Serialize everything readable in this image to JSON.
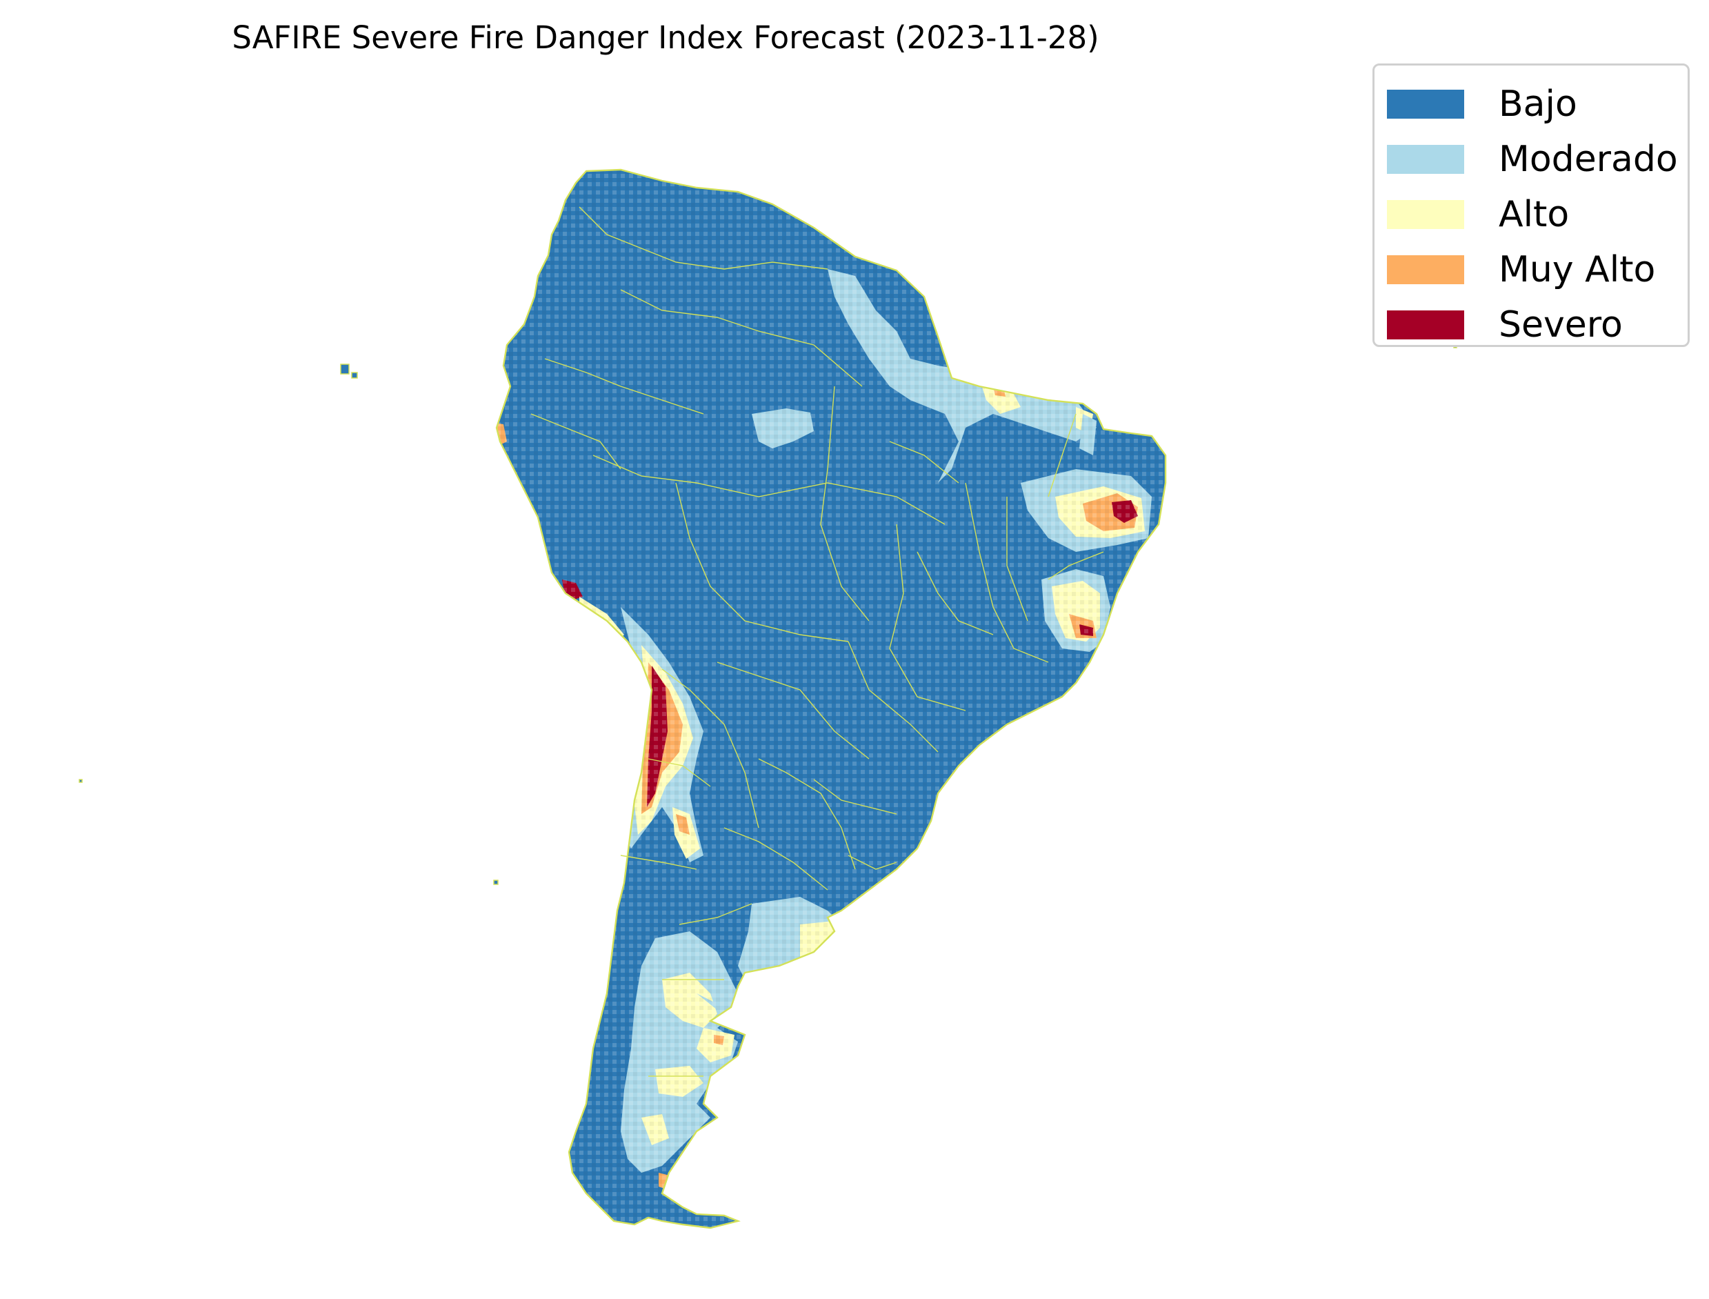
{
  "title": "SAFIRE Severe Fire Danger Index Forecast (2023-11-28)",
  "legend": [
    {
      "label": "Bajo",
      "color": "#2c79b5"
    },
    {
      "label": "Moderado",
      "color": "#abd9e9"
    },
    {
      "label": "Alto",
      "color": "#fefebd"
    },
    {
      "label": "Muy Alto",
      "color": "#fdae61"
    },
    {
      "label": "Severo",
      "color": "#a50026"
    }
  ],
  "map": {
    "region": "South America",
    "background_class": "Bajo",
    "border_color": "#d4e157",
    "hotspots": [
      {
        "area": "northern Brazil coast",
        "classes": [
          "Moderado",
          "Alto",
          "Muy Alto"
        ]
      },
      {
        "area": "northeastern Brazil interior",
        "classes": [
          "Moderado",
          "Alto",
          "Muy Alto",
          "Severo"
        ]
      },
      {
        "area": "eastern Brazil",
        "classes": [
          "Moderado",
          "Alto",
          "Muy Alto",
          "Severo"
        ]
      },
      {
        "area": "central Chile / Andes",
        "classes": [
          "Moderado",
          "Alto",
          "Muy Alto",
          "Severo"
        ]
      },
      {
        "area": "southern Peru coast",
        "classes": [
          "Severo"
        ]
      },
      {
        "area": "northern Peru coast",
        "classes": [
          "Muy Alto"
        ]
      },
      {
        "area": "Patagonia",
        "classes": [
          "Moderado",
          "Alto",
          "Muy Alto"
        ]
      },
      {
        "area": "Buenos Aires region",
        "classes": [
          "Moderado",
          "Alto"
        ]
      }
    ]
  }
}
